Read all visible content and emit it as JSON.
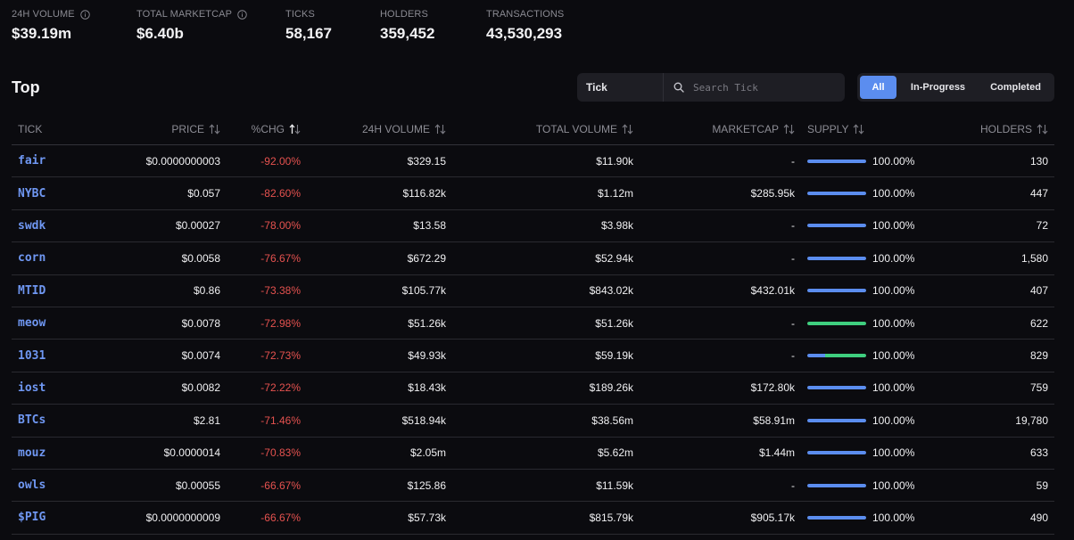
{
  "stats": [
    {
      "label": "24H VOLUME",
      "value": "$39.19m",
      "info": true
    },
    {
      "label": "TOTAL MARKETCAP",
      "value": "$6.40b",
      "info": true
    },
    {
      "label": "TICKS",
      "value": "58,167",
      "info": false
    },
    {
      "label": "HOLDERS",
      "value": "359,452",
      "info": false
    },
    {
      "label": "TRANSACTIONS",
      "value": "43,530,293",
      "info": false
    }
  ],
  "section": {
    "title": "Top"
  },
  "search": {
    "select_label": "Tick",
    "placeholder": "Search Tick"
  },
  "filters": {
    "all": "All",
    "in_progress": "In-Progress",
    "completed": "Completed",
    "active": "All"
  },
  "colors": {
    "accent": "#5b8def",
    "negative": "#e5524f",
    "progress_blue": "#5b8def",
    "progress_green": "#3fcf7f",
    "tick_link": "#6f97f2"
  },
  "table": {
    "headers": {
      "tick": "TICK",
      "price": "PRICE",
      "chg": "%CHG",
      "vol24": "24H VOLUME",
      "total_vol": "TOTAL VOLUME",
      "mcap": "MARKETCAP",
      "supply": "SUPPLY",
      "holders": "HOLDERS"
    },
    "rows": [
      {
        "tick": "fair",
        "price": "$0.0000000003",
        "chg": "-92.00%",
        "vol24": "$329.15",
        "total_vol": "$11.90k",
        "mcap": "-",
        "supply": "100.00%",
        "supply_pct": 100,
        "bar_color": "#5b8def",
        "holders": "130"
      },
      {
        "tick": "NYBC",
        "price": "$0.057",
        "chg": "-82.60%",
        "vol24": "$116.82k",
        "total_vol": "$1.12m",
        "mcap": "$285.95k",
        "supply": "100.00%",
        "supply_pct": 100,
        "bar_color": "#5b8def",
        "holders": "447"
      },
      {
        "tick": "swdk",
        "price": "$0.00027",
        "chg": "-78.00%",
        "vol24": "$13.58",
        "total_vol": "$3.98k",
        "mcap": "-",
        "supply": "100.00%",
        "supply_pct": 100,
        "bar_color": "#5b8def",
        "holders": "72"
      },
      {
        "tick": "corn",
        "price": "$0.0058",
        "chg": "-76.67%",
        "vol24": "$672.29",
        "total_vol": "$52.94k",
        "mcap": "-",
        "supply": "100.00%",
        "supply_pct": 100,
        "bar_color": "#5b8def",
        "holders": "1,580"
      },
      {
        "tick": "MTID",
        "price": "$0.86",
        "chg": "-73.38%",
        "vol24": "$105.77k",
        "total_vol": "$843.02k",
        "mcap": "$432.01k",
        "supply": "100.00%",
        "supply_pct": 100,
        "bar_color": "#5b8def",
        "holders": "407"
      },
      {
        "tick": "meow",
        "price": "$0.0078",
        "chg": "-72.98%",
        "vol24": "$51.26k",
        "total_vol": "$51.26k",
        "mcap": "-",
        "supply": "100.00%",
        "supply_pct": 100,
        "bar_color": "#3fcf7f",
        "holders": "622"
      },
      {
        "tick": "1031",
        "price": "$0.0074",
        "chg": "-72.73%",
        "vol24": "$49.93k",
        "total_vol": "$59.19k",
        "mcap": "-",
        "supply": "100.00%",
        "supply_pct": 100,
        "bar_color": "split",
        "holders": "829"
      },
      {
        "tick": "iost",
        "price": "$0.0082",
        "chg": "-72.22%",
        "vol24": "$18.43k",
        "total_vol": "$189.26k",
        "mcap": "$172.80k",
        "supply": "100.00%",
        "supply_pct": 100,
        "bar_color": "#5b8def",
        "holders": "759"
      },
      {
        "tick": "BTCs",
        "price": "$2.81",
        "chg": "-71.46%",
        "vol24": "$518.94k",
        "total_vol": "$38.56m",
        "mcap": "$58.91m",
        "supply": "100.00%",
        "supply_pct": 100,
        "bar_color": "#5b8def",
        "holders": "19,780"
      },
      {
        "tick": "mouz",
        "price": "$0.0000014",
        "chg": "-70.83%",
        "vol24": "$2.05m",
        "total_vol": "$5.62m",
        "mcap": "$1.44m",
        "supply": "100.00%",
        "supply_pct": 100,
        "bar_color": "#5b8def",
        "holders": "633"
      },
      {
        "tick": "owls",
        "price": "$0.00055",
        "chg": "-66.67%",
        "vol24": "$125.86",
        "total_vol": "$11.59k",
        "mcap": "-",
        "supply": "100.00%",
        "supply_pct": 100,
        "bar_color": "#5b8def",
        "holders": "59"
      },
      {
        "tick": "$PIG",
        "price": "$0.0000000009",
        "chg": "-66.67%",
        "vol24": "$57.73k",
        "total_vol": "$815.79k",
        "mcap": "$905.17k",
        "supply": "100.00%",
        "supply_pct": 100,
        "bar_color": "#5b8def",
        "holders": "490"
      }
    ]
  }
}
